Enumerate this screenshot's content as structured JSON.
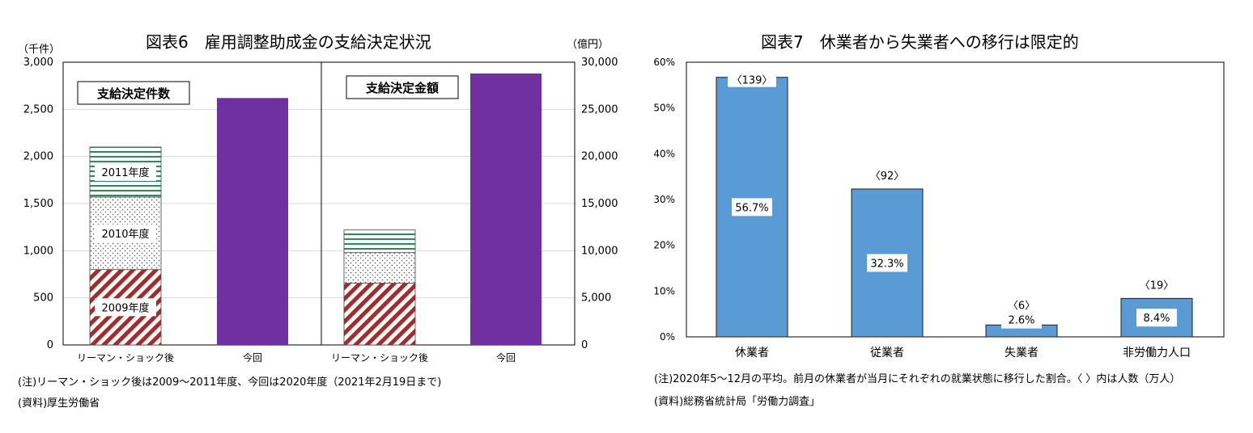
{
  "chart_data": [
    {
      "type": "bar",
      "title": "図表6　雇用調整助成金の支給決定状況",
      "left_unit": "（千件）",
      "right_unit": "（億円）",
      "y_ticks_left": [
        "0",
        "500",
        "1,000",
        "1,500",
        "2,000",
        "2,500",
        "3,000"
      ],
      "y_ticks_right": [
        "0",
        "5,000",
        "10,000",
        "15,000",
        "20,000",
        "25,000",
        "30,000"
      ],
      "ylim_left": [
        0,
        3000
      ],
      "ylim_right": [
        0,
        30000
      ],
      "grid": true,
      "panels": [
        {
          "label": "支給決定件数",
          "axis": "left",
          "categories": [
            "リーマン・ショック後",
            "今回"
          ],
          "stacked_series": [
            {
              "name": "2009年度",
              "values": [
                800,
                0
              ],
              "pattern": "red-diagonal"
            },
            {
              "name": "2010年度",
              "values": [
                770,
                0
              ],
              "pattern": "dots"
            },
            {
              "name": "2011年度",
              "values": [
                530,
                0
              ],
              "pattern": "green-horizontal"
            }
          ],
          "current_values": [
            0,
            2620
          ]
        },
        {
          "label": "支給決定金額",
          "axis": "right",
          "categories": [
            "リーマン・ショック後",
            "今回"
          ],
          "stacked_series": [
            {
              "values": [
                6550,
                0
              ],
              "pattern": "red-diagonal"
            },
            {
              "values": [
                3250,
                0
              ],
              "pattern": "dots"
            },
            {
              "values": [
                2400,
                0
              ],
              "pattern": "green-horizontal"
            }
          ],
          "current_values": [
            0,
            28800
          ]
        }
      ],
      "colors": {
        "current": "#7030A0",
        "red": "#A52A2A",
        "green": "#2E8B57",
        "dots": "#555555"
      },
      "notes": [
        "(注)リーマン・ショック後は2009～2011年度、今回は2020年度（2021年2月19日まで)",
        "(資料)厚生労働省"
      ]
    },
    {
      "type": "bar",
      "title": "図表7　休業者から失業者への移行は限定的",
      "categories": [
        "休業者",
        "従業者",
        "失業者",
        "非労働力人口"
      ],
      "values": [
        56.7,
        32.3,
        2.6,
        8.4
      ],
      "value_labels": [
        "56.7%",
        "32.3%",
        "2.6%",
        "8.4%"
      ],
      "top_labels": [
        "〈139〉",
        "〈92〉",
        "〈6〉",
        "〈19〉"
      ],
      "y_ticks": [
        "0%",
        "10%",
        "20%",
        "30%",
        "40%",
        "50%",
        "60%"
      ],
      "ylim": [
        0,
        60
      ],
      "grid": false,
      "color": "#5B9BD5",
      "notes": [
        "(注)2020年5～12月の平均。前月の休業者が当月にそれぞれの就業状態に移行した割合。〈 〉内は人数（万人）",
        "(資料)総務省統計局「労働力調査」"
      ]
    }
  ]
}
